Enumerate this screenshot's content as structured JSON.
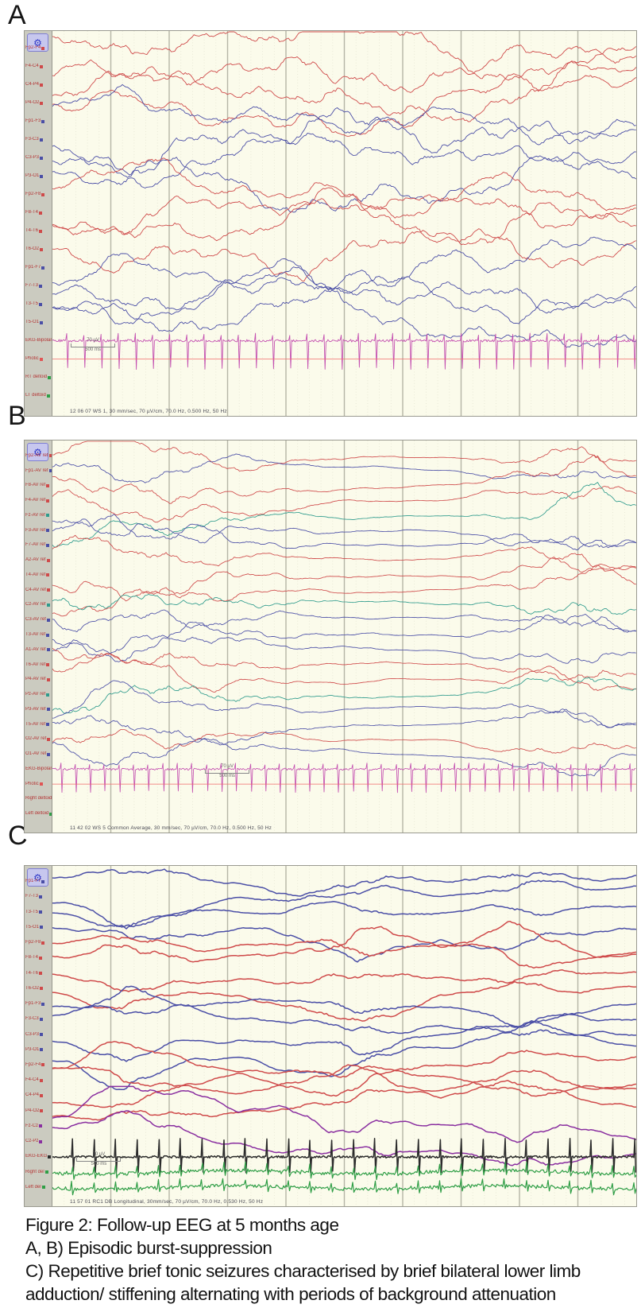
{
  "icons": {
    "gear": "⚙"
  },
  "caption": {
    "lines": [
      "Figure 2: Follow-up EEG at 5 months age",
      "A, B) Episodic burst-suppression",
      "C) Repetitive brief tonic seizures characterised by brief bilateral lower limb",
      "adduction/ stiffening alternating with  periods of background attenuation"
    ]
  },
  "panels": [
    {
      "letter": "A",
      "status": "12 06 07 WS 1, 30 mm/sec, 70 µV/cm, 70.0 Hz, 0.500 Hz, 50 Hz",
      "seed": 11,
      "fscale": 1.0,
      "ampf": 1.0,
      "stroke": 0.9,
      "step": 2.2,
      "ekg": {
        "beats": 34,
        "up": 0.35,
        "down": 1.5
      },
      "scale": {
        "amp": "70 µV",
        "time": "500 ms",
        "x": 0.03,
        "row": 16.8
      },
      "envelope": [
        [
          0,
          0.06,
          0.7
        ],
        [
          0.06,
          0.22,
          1.0
        ],
        [
          0.22,
          0.4,
          0.8
        ],
        [
          0.4,
          0.6,
          1.05
        ],
        [
          0.6,
          0.78,
          0.85
        ],
        [
          0.78,
          0.92,
          1.0
        ],
        [
          0.92,
          1,
          0.75
        ]
      ],
      "channels": [
        {
          "label": "Fp2-F4",
          "color": "#cf4a4a",
          "kind": "eeg"
        },
        {
          "label": "F4-C4",
          "color": "#cf4a4a",
          "kind": "eeg"
        },
        {
          "label": "C4-P4",
          "color": "#cf4a4a",
          "kind": "eeg"
        },
        {
          "label": "P4-O2",
          "color": "#cf4a4a",
          "kind": "eeg"
        },
        {
          "label": "Fp1-F3",
          "color": "#4a4ea6",
          "kind": "eeg"
        },
        {
          "label": "F3-C3",
          "color": "#4a4ea6",
          "kind": "eeg"
        },
        {
          "label": "C3-P3",
          "color": "#4a4ea6",
          "kind": "eeg"
        },
        {
          "label": "P3-O1",
          "color": "#4a4ea6",
          "kind": "eeg"
        },
        {
          "label": "Fp2-F8",
          "color": "#cf4a4a",
          "kind": "eeg"
        },
        {
          "label": "F8-T4",
          "color": "#cf4a4a",
          "kind": "eeg"
        },
        {
          "label": "T4-T6",
          "color": "#cf4a4a",
          "kind": "eeg"
        },
        {
          "label": "T6-O2",
          "color": "#cf4a4a",
          "kind": "eeg"
        },
        {
          "label": "Fp1-F7",
          "color": "#4a4ea6",
          "kind": "eeg"
        },
        {
          "label": "F7-T3",
          "color": "#4a4ea6",
          "kind": "eeg"
        },
        {
          "label": "T3-T5",
          "color": "#4a4ea6",
          "kind": "eeg"
        },
        {
          "label": "T5-O1",
          "color": "#4a4ea6",
          "kind": "eeg"
        },
        {
          "label": "EKG-Bipolar",
          "color": "#c44fb0",
          "kind": "ekg"
        },
        {
          "label": "Photic",
          "color": "#e05555",
          "kind": "photic"
        },
        {
          "label": "RT deltoid",
          "color": "#2f9e46",
          "kind": "event"
        },
        {
          "label": "LT deltoid",
          "color": "#2f9e46",
          "kind": "event"
        }
      ]
    },
    {
      "letter": "B",
      "status": "11 42 02 WS 5 Common Average, 30 mm/sec, 70 µV/cm, 70.0 Hz, 0.500 Hz, 50 Hz",
      "seed": 23,
      "fscale": 1.1,
      "ampf": 0.9,
      "stroke": 0.85,
      "step": 2.2,
      "ekg": {
        "beats": 40,
        "up": 0.35,
        "down": 1.5
      },
      "scale": {
        "amp": "70 µV",
        "time": "500 ms",
        "x": 0.26,
        "row": 21.7
      },
      "envelope": [
        [
          0,
          0.4,
          1.0
        ],
        [
          0.4,
          0.5,
          0.25
        ],
        [
          0.5,
          0.84,
          0.07
        ],
        [
          0.84,
          0.9,
          0.9
        ],
        [
          0.9,
          0.97,
          1.1
        ],
        [
          0.97,
          1,
          0.5
        ]
      ],
      "channels": [
        {
          "label": "Fp2-AV ref",
          "color": "#cf4a4a",
          "kind": "eeg"
        },
        {
          "label": "Fp1-AV ref",
          "color": "#4a4ea6",
          "kind": "eeg"
        },
        {
          "label": "F8-AV ref",
          "color": "#cf4a4a",
          "kind": "eeg"
        },
        {
          "label": "F4-AV ref",
          "color": "#cf4a4a",
          "kind": "eeg"
        },
        {
          "label": "Fz-AV ref",
          "color": "#2e9b8c",
          "kind": "eeg"
        },
        {
          "label": "F3-AV ref",
          "color": "#4a4ea6",
          "kind": "eeg"
        },
        {
          "label": "F7-AV ref",
          "color": "#4a4ea6",
          "kind": "eeg"
        },
        {
          "label": "A2-AV ref",
          "color": "#cf4a4a",
          "kind": "eeg"
        },
        {
          "label": "T4-AV ref",
          "color": "#cf4a4a",
          "kind": "eeg"
        },
        {
          "label": "C4-AV ref",
          "color": "#cf4a4a",
          "kind": "eeg"
        },
        {
          "label": "Cz-AV ref",
          "color": "#2e9b8c",
          "kind": "eeg"
        },
        {
          "label": "C3-AV ref",
          "color": "#4a4ea6",
          "kind": "eeg"
        },
        {
          "label": "T3-AV ref",
          "color": "#4a4ea6",
          "kind": "eeg"
        },
        {
          "label": "A1-AV ref",
          "color": "#4a4ea6",
          "kind": "eeg"
        },
        {
          "label": "T6-AV ref",
          "color": "#cf4a4a",
          "kind": "eeg"
        },
        {
          "label": "P4-AV ref",
          "color": "#cf4a4a",
          "kind": "eeg"
        },
        {
          "label": "Pz-AV ref",
          "color": "#2e9b8c",
          "kind": "eeg"
        },
        {
          "label": "P3-AV ref",
          "color": "#4a4ea6",
          "kind": "eeg"
        },
        {
          "label": "T5-AV ref",
          "color": "#4a4ea6",
          "kind": "eeg"
        },
        {
          "label": "O2-AV ref",
          "color": "#cf4a4a",
          "kind": "eeg"
        },
        {
          "label": "O1-AV ref",
          "color": "#4a4ea6",
          "kind": "eeg"
        },
        {
          "label": "EKG-Bipolar",
          "color": "#c44fb0",
          "kind": "ekg"
        },
        {
          "label": "Photic",
          "color": "#e05555",
          "kind": "photic"
        },
        {
          "label": "Right deltoid",
          "color": "#2f9e46",
          "kind": "event"
        },
        {
          "label": "Left deltoid",
          "color": "#2f9e46",
          "kind": "event"
        }
      ]
    },
    {
      "letter": "C",
      "status": "11 57 01 RC1 DB Longitudinal, 30mm/sec, 70 µV/cm, 70.0 Hz, 0.530 Hz, 50 Hz",
      "seed": 47,
      "fscale": 0.5,
      "ampf": 1.15,
      "stroke": 1.5,
      "step": 3,
      "ekg": {
        "beats": 27,
        "up": 1.15,
        "down": 1.0
      },
      "scale": {
        "amp": "70 µV",
        "time": "500 ms",
        "x": 0.04,
        "row": 18.7
      },
      "envelope": [
        [
          0,
          0.05,
          0.3
        ],
        [
          0.05,
          0.2,
          1.1
        ],
        [
          0.2,
          0.44,
          0.3
        ],
        [
          0.44,
          0.6,
          1.1
        ],
        [
          0.6,
          0.73,
          0.3
        ],
        [
          0.73,
          0.87,
          1.0
        ],
        [
          0.87,
          1,
          0.4
        ]
      ],
      "channels": [
        {
          "label": "Fp1-F7",
          "color": "#4a4ea6",
          "kind": "eeg"
        },
        {
          "label": "F7-T3",
          "color": "#4a4ea6",
          "kind": "eeg"
        },
        {
          "label": "T3-T5",
          "color": "#4a4ea6",
          "kind": "eeg"
        },
        {
          "label": "T5-O1",
          "color": "#4a4ea6",
          "kind": "eeg"
        },
        {
          "label": "Fp2-F8",
          "color": "#cf4a4a",
          "kind": "eeg"
        },
        {
          "label": "F8-T4",
          "color": "#cf4a4a",
          "kind": "eeg"
        },
        {
          "label": "T4-T6",
          "color": "#cf4a4a",
          "kind": "eeg"
        },
        {
          "label": "T6-O2",
          "color": "#cf4a4a",
          "kind": "eeg"
        },
        {
          "label": "Fp1-F3",
          "color": "#4a4ea6",
          "kind": "eeg"
        },
        {
          "label": "F3-C3",
          "color": "#4a4ea6",
          "kind": "eeg"
        },
        {
          "label": "C3-P3",
          "color": "#4a4ea6",
          "kind": "eeg"
        },
        {
          "label": "P3-O1",
          "color": "#4a4ea6",
          "kind": "eeg"
        },
        {
          "label": "Fp2-F4",
          "color": "#cf4a4a",
          "kind": "eeg"
        },
        {
          "label": "F4-C4",
          "color": "#cf4a4a",
          "kind": "eeg"
        },
        {
          "label": "C4-P4",
          "color": "#cf4a4a",
          "kind": "eeg"
        },
        {
          "label": "P4-O2",
          "color": "#cf4a4a",
          "kind": "eeg"
        },
        {
          "label": "Fz-Cz",
          "color": "#8a2fa0",
          "kind": "eeg",
          "amp": 1.5
        },
        {
          "label": "Cz-Pz",
          "color": "#8a2fa0",
          "kind": "eeg",
          "amp": 1.5
        },
        {
          "label": "EKG-EKG",
          "color": "#2b2b2b",
          "kind": "ekg"
        },
        {
          "label": "Right del",
          "color": "#2f9e46",
          "kind": "emg"
        },
        {
          "label": "Left del",
          "color": "#2f9e46",
          "kind": "emg"
        }
      ]
    }
  ]
}
